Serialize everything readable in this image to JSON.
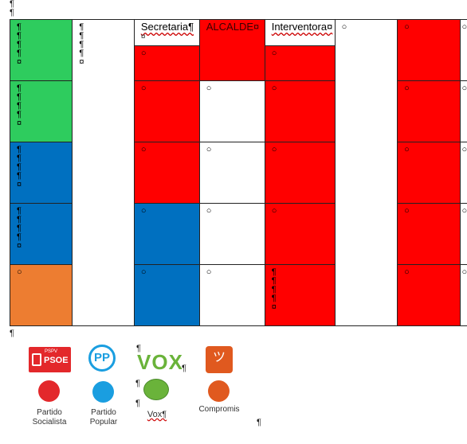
{
  "colors": {
    "green": "#2ecc5e",
    "blue": "#0070c0",
    "orange": "#ed7d31",
    "red": "#ff0000",
    "white": "#ffffff",
    "psoe_red": "#e3282b",
    "pp_blue": "#1a9ee0",
    "vox_green": "#6ab33a",
    "compromis_orange": "#e0591f"
  },
  "headers": {
    "secretaria": "Secretaria¶",
    "secretaria_mark": "¤",
    "alcalde": "ALCALDE¤",
    "interventora": "Interventora¤"
  },
  "marks": {
    "pilcrow": "¶",
    "cell_end": "¤",
    "small_circle": "○"
  },
  "legend": {
    "psoe_logo_text": "PSOE",
    "psoe_logo_sub": "PSPV",
    "pp_logo_text": "PP",
    "vox_logo_text": "VOX",
    "compromis_logo_text": "ツ",
    "psoe_label": "Partido\nSocialista",
    "pp_label": "Partido\nPopular",
    "vox_label": "Vox¶",
    "compromis_label": "Compromis"
  }
}
